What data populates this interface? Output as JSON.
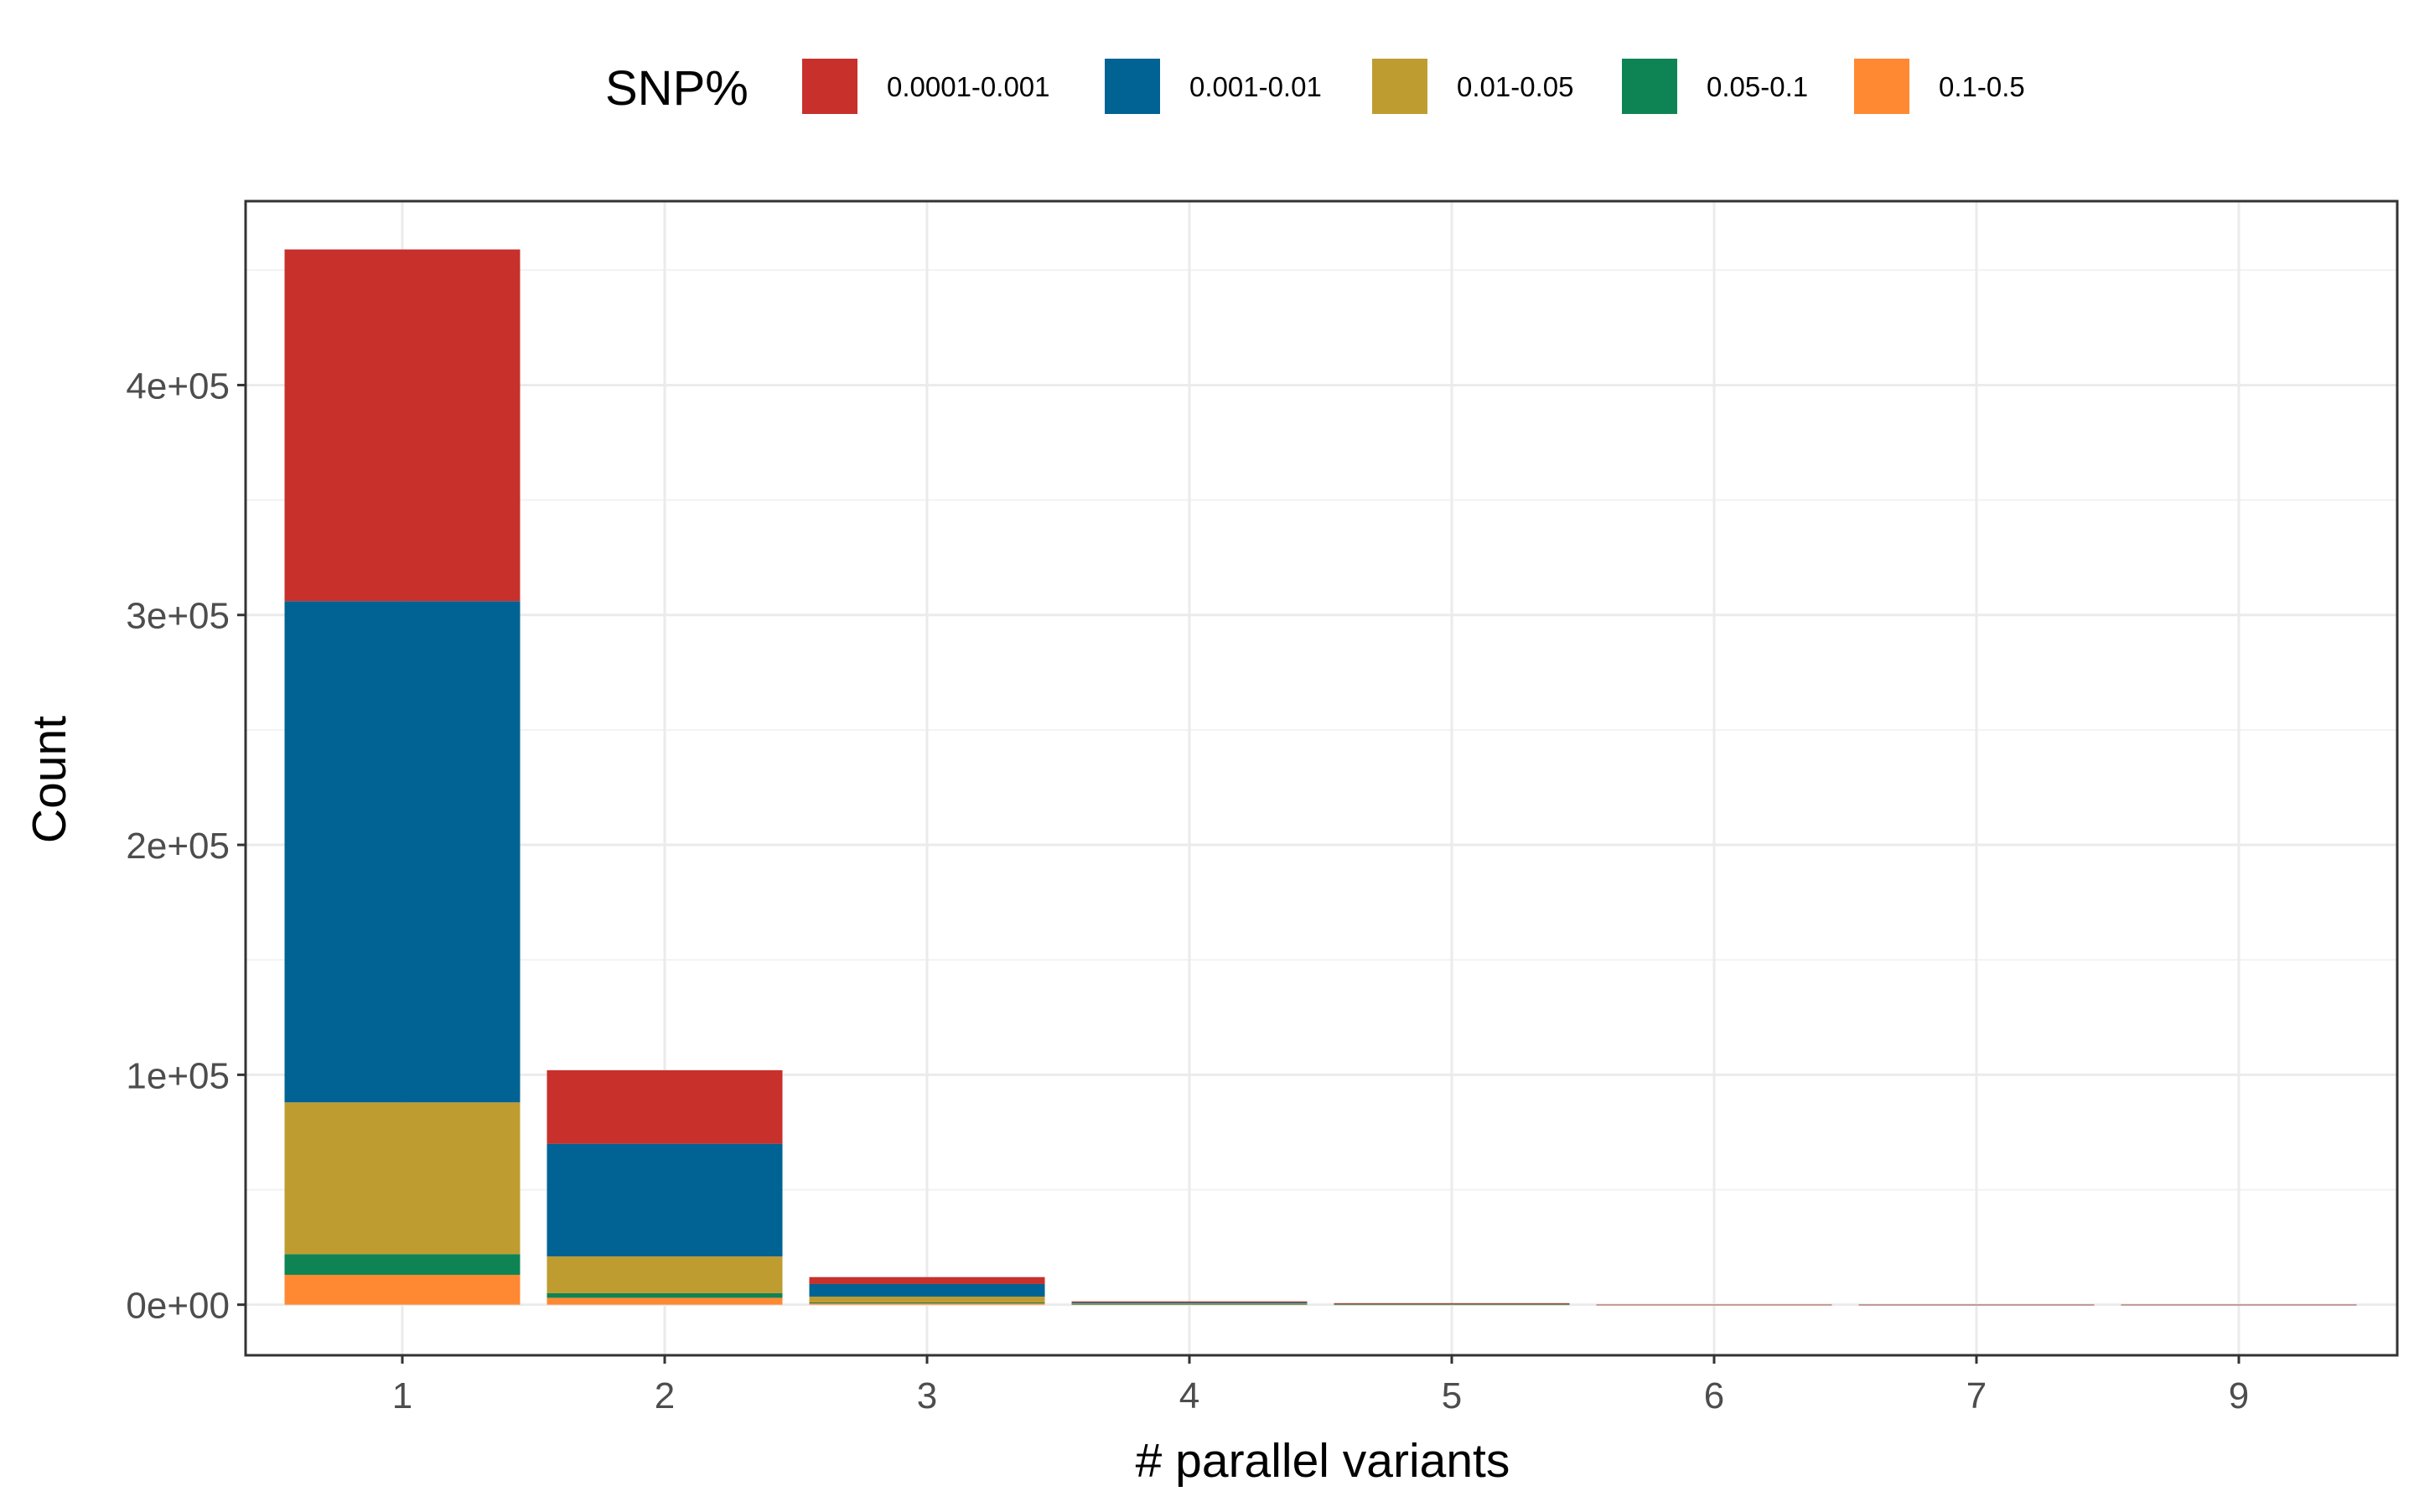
{
  "chart_data": {
    "type": "bar",
    "stacked": true,
    "title": "",
    "xlabel": "# parallel variants",
    "ylabel": "Count",
    "categories": [
      "1",
      "2",
      "3",
      "4",
      "5",
      "6",
      "7",
      "9"
    ],
    "ylim": [
      -22000,
      480000
    ],
    "y_ticks": [
      0,
      100000,
      200000,
      300000,
      400000
    ],
    "y_tick_labels": [
      "0e+00",
      "1e+05",
      "2e+05",
      "3e+05",
      "4e+05"
    ],
    "grid": true,
    "legend": {
      "title": "SNP%",
      "position": "top"
    },
    "series": [
      {
        "name": "0.1-0.5",
        "color": "#FF8833",
        "values": [
          13000,
          3000,
          600,
          150,
          50,
          5,
          2,
          1
        ]
      },
      {
        "name": "0.05-0.1",
        "color": "#0E8455",
        "values": [
          9000,
          2000,
          400,
          100,
          30,
          3,
          1,
          0
        ]
      },
      {
        "name": "0.01-0.05",
        "color": "#BF9C30",
        "values": [
          66000,
          16000,
          2500,
          300,
          100,
          10,
          3,
          1
        ]
      },
      {
        "name": "0.001-0.01",
        "color": "#006394",
        "values": [
          218000,
          49000,
          5500,
          500,
          200,
          20,
          5,
          1
        ]
      },
      {
        "name": "0.0001-0.001",
        "color": "#C8302B",
        "values": [
          153000,
          32000,
          3000,
          400,
          300,
          20,
          5,
          1
        ]
      }
    ],
    "legend_order": [
      "0.0001-0.001",
      "0.001-0.01",
      "0.01-0.05",
      "0.05-0.1",
      "0.1-0.5"
    ]
  }
}
